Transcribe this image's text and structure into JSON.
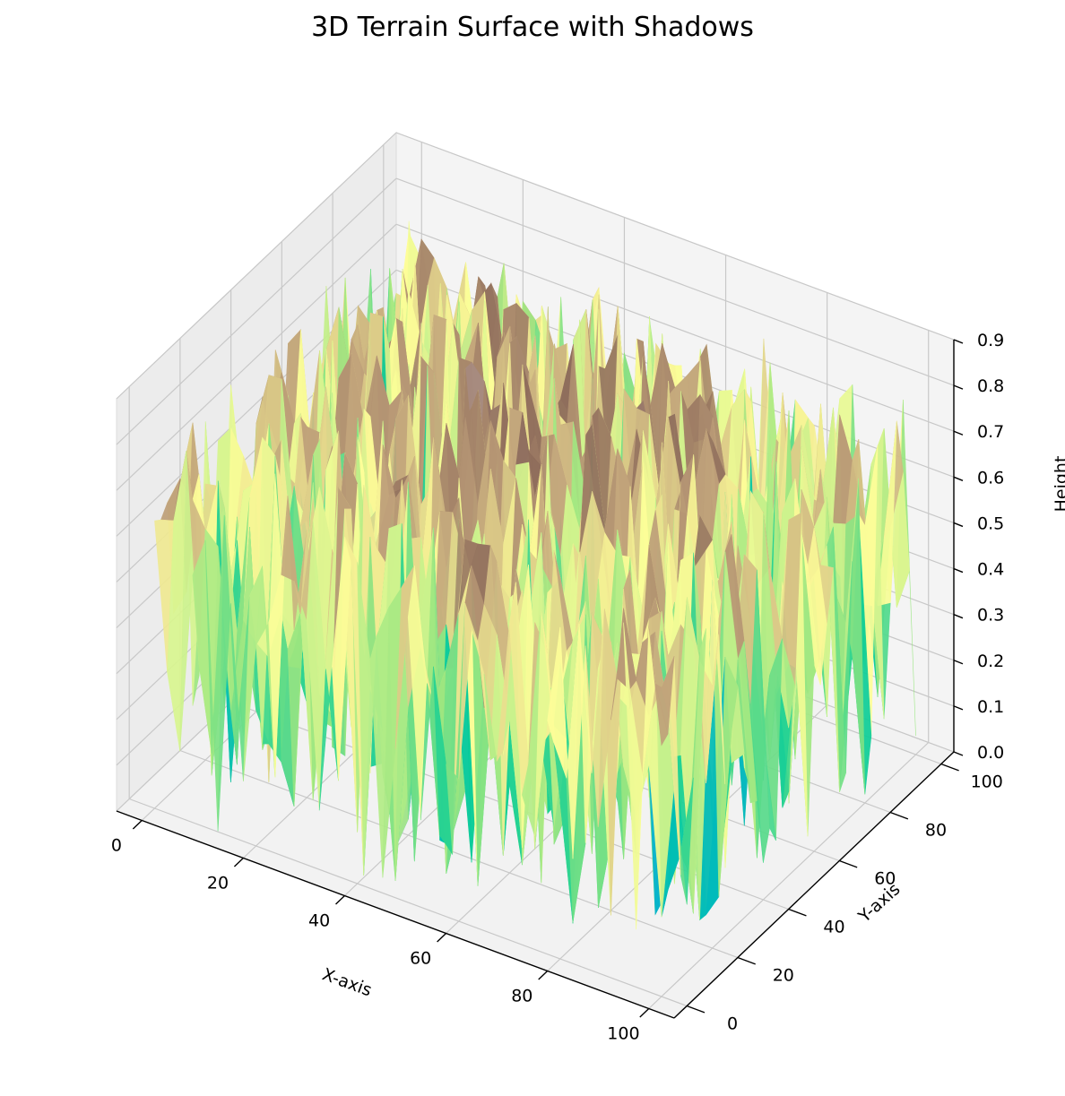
{
  "chart_data": {
    "type": "surface",
    "title": "3D Terrain Surface with Shadows",
    "xlabel": "X-axis",
    "ylabel": "Y-axis",
    "zlabel": "Height",
    "x_ticks": [
      0,
      20,
      40,
      60,
      80,
      100
    ],
    "y_ticks": [
      0,
      20,
      40,
      60,
      80,
      100
    ],
    "z_ticks": [
      0.0,
      0.1,
      0.2,
      0.3,
      0.4,
      0.5,
      0.6,
      0.7,
      0.8,
      0.9
    ],
    "xlim": [
      -5,
      105
    ],
    "ylim": [
      -5,
      105
    ],
    "zlim": [
      0,
      0.9
    ],
    "grid": true,
    "colormap": "terrain",
    "colormap_stops": [
      "#333399",
      "#0099ff",
      "#00cc99",
      "#99e680",
      "#ffff99",
      "#bfa07a",
      "#8c6a5a",
      "#d9c7c2"
    ],
    "surface_shape": "noisy terrain, most heights between 0.3 and 0.8, a central mound"
  }
}
